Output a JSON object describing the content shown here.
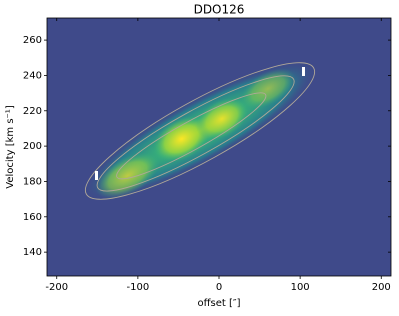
{
  "chart_data": {
    "type": "image",
    "title": "DDO126",
    "xlabel": "offset [″]",
    "ylabel": "Velocity [km s⁻¹]",
    "xlim": [
      -212,
      212
    ],
    "ylim": [
      126.5,
      272.5
    ],
    "xticks": [
      -200,
      -100,
      0,
      100,
      200
    ],
    "yticks": [
      140,
      160,
      180,
      200,
      220,
      240,
      260
    ]
  }
}
